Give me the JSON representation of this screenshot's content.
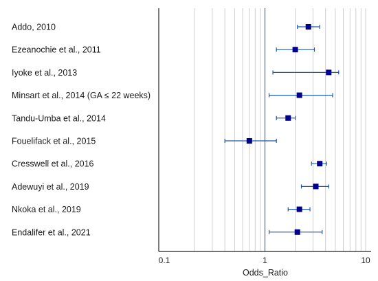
{
  "chart_data": {
    "type": "forest",
    "xlabel": "Odds_Ratio",
    "xscale": "log",
    "xlim": [
      0.1,
      10
    ],
    "xticks": [
      "0.1",
      "1",
      "10"
    ],
    "reference_line": 1,
    "grid": "vertical",
    "colors": {
      "marker": "#00008b",
      "ci_line": "#1f5aa6",
      "ref_line": "#3a6fb0",
      "grid": "#cfcfcf"
    },
    "studies": [
      {
        "label": "Addo, 2010",
        "or": 2.7,
        "lower": 2.1,
        "upper": 3.5
      },
      {
        "label": "Ezeanochie et al., 2011",
        "or": 2.0,
        "lower": 1.3,
        "upper": 3.1
      },
      {
        "label": "Iyoke et al., 2013",
        "or": 4.3,
        "lower": 1.2,
        "upper": 5.4
      },
      {
        "label": "Minsart et al., 2014 (GA ≤ 22 weeks)",
        "or": 2.2,
        "lower": 1.1,
        "upper": 4.7
      },
      {
        "label": "Tandu-Umba et al., 2014",
        "or": 1.7,
        "lower": 1.3,
        "upper": 2.0
      },
      {
        "label": "Fouelifack et al., 2015",
        "or": 0.7,
        "lower": 0.4,
        "upper": 1.3
      },
      {
        "label": "Cresswell et al., 2016",
        "or": 3.5,
        "lower": 2.9,
        "upper": 4.1
      },
      {
        "label": "Adewuyi et al., 2019",
        "or": 3.2,
        "lower": 2.3,
        "upper": 4.3
      },
      {
        "label": "Nkoka et al., 2019",
        "or": 2.2,
        "lower": 1.7,
        "upper": 2.8
      },
      {
        "label": "Endalifer et al., 2021",
        "or": 2.1,
        "lower": 1.1,
        "upper": 3.7
      }
    ]
  }
}
